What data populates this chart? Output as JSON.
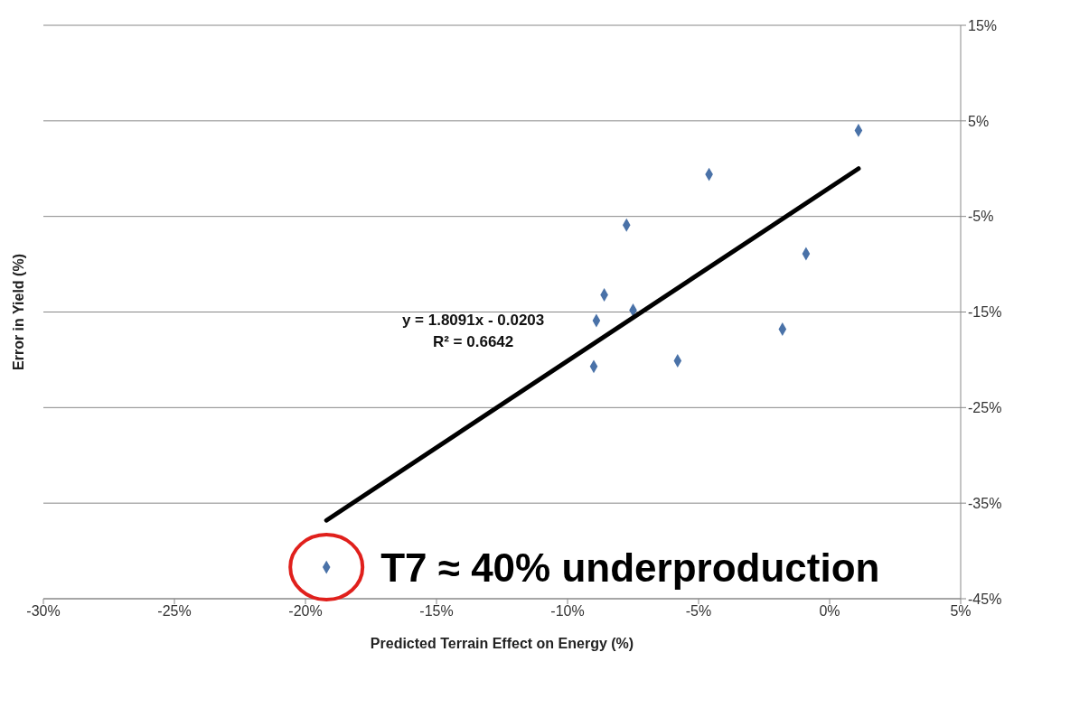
{
  "chart_data": {
    "type": "scatter",
    "xlabel": "Predicted Terrain Effect on Energy (%)",
    "ylabel": "Error in Yield (%)",
    "xlim": [
      -30,
      5
    ],
    "xticks": [
      {
        "value": -30,
        "label": "-30%"
      },
      {
        "value": -25,
        "label": "-25%"
      },
      {
        "value": -20,
        "label": "-20%"
      },
      {
        "value": -15,
        "label": "-15%"
      },
      {
        "value": -10,
        "label": "-10%"
      },
      {
        "value": -5,
        "label": "-5%"
      },
      {
        "value": 0,
        "label": "0%"
      },
      {
        "value": 5,
        "label": "5%"
      }
    ],
    "ylim": [
      -45,
      15
    ],
    "yticks": [
      {
        "value": -45,
        "label": "-45%"
      },
      {
        "value": -35,
        "label": "-35%"
      },
      {
        "value": -25,
        "label": "-25%"
      },
      {
        "value": -15,
        "label": "-15%"
      },
      {
        "value": -5,
        "label": "-5%"
      },
      {
        "value": 5,
        "label": "5%"
      },
      {
        "value": 15,
        "label": "15%"
      }
    ],
    "grid": "y",
    "marker": "diamond",
    "series": [
      {
        "color": "#4a72a8",
        "x": [
          1.1,
          -4.6,
          -7.75,
          -0.9,
          -8.6,
          -7.5,
          -8.9,
          -1.8,
          -5.8,
          -9.0,
          -19.2
        ],
        "values": [
          4.0,
          -0.6,
          -5.9,
          -8.9,
          -13.2,
          -14.8,
          -15.9,
          -16.8,
          -20.1,
          -20.7,
          -41.7
        ]
      },
      {
        "type": "line",
        "color": "#000000",
        "marker": "none",
        "line_style": "solid",
        "x": [
          -19.2,
          1.1
        ],
        "values": [
          -36.8,
          0
        ]
      }
    ],
    "annotations": [
      "y = 1.8091x - 0.0203",
      "R² = 0.6642",
      {
        "text": "T7 ≈ 40% underproduction",
        "x": -19.2,
        "y": -41.7
      }
    ]
  }
}
